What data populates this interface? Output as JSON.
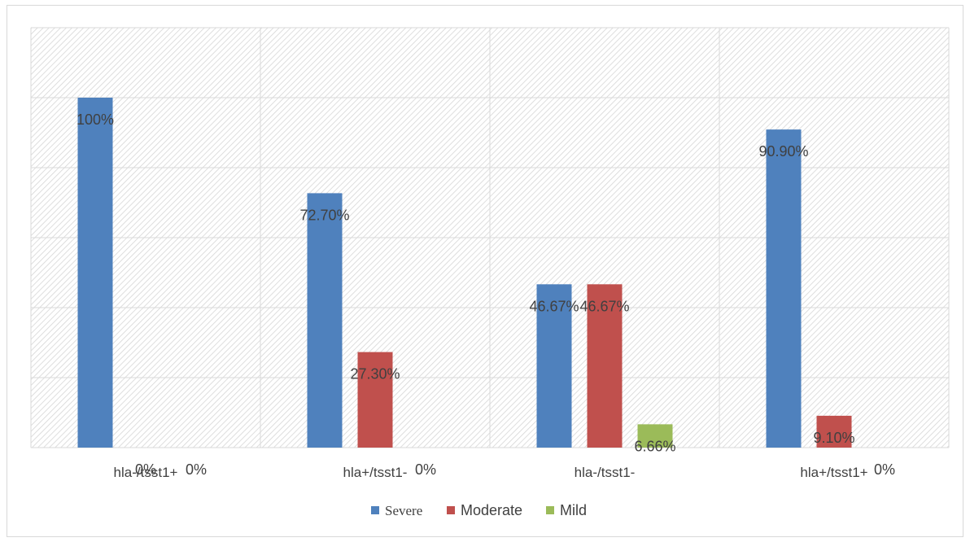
{
  "chart_data": {
    "type": "bar",
    "title": "",
    "xlabel": "",
    "ylabel": "",
    "categories": [
      "hla-/tsst1+",
      "hla+/tsst1-",
      "hla-/tsst1-",
      "hla+/tsst1+"
    ],
    "series": [
      {
        "name": "Severe",
        "values": [
          100,
          72.7,
          46.67,
          90.9
        ],
        "labels": [
          "100%",
          "72.70%",
          "46.67%",
          "90.90%"
        ],
        "color": "#4f81bd"
      },
      {
        "name": "Moderate",
        "values": [
          0,
          27.3,
          46.67,
          9.1
        ],
        "labels": [
          "0%",
          "27.30%",
          "46.67%",
          "9.10%"
        ],
        "color": "#c0504d"
      },
      {
        "name": "Mild",
        "values": [
          0,
          0,
          6.66,
          0
        ],
        "labels": [
          "0%",
          "0%",
          "6.66%",
          "0%"
        ],
        "color": "#9bbb59"
      }
    ],
    "ylim": [
      0,
      120
    ],
    "grid": true,
    "y_tick_labels_visible": false,
    "plot_background": "hatched-light-gray",
    "legend_position": "bottom"
  }
}
